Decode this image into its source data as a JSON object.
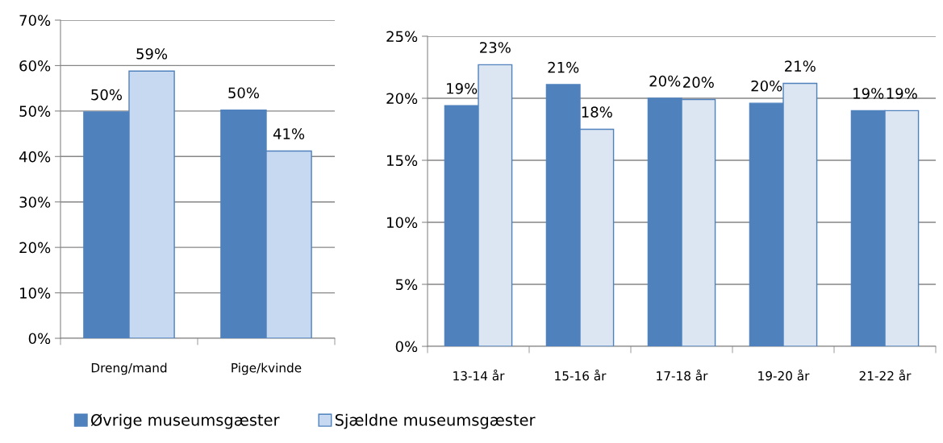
{
  "chart_data": [
    {
      "type": "bar",
      "categories": [
        "Dreng/mand",
        "Pige/kvinde"
      ],
      "series": [
        {
          "name": "Øvrige museumsgæster",
          "color": "#4f81bd",
          "values": [
            49.8,
            50.2
          ],
          "value_labels": [
            "50%",
            "50%"
          ]
        },
        {
          "name": "Sjældne museumsgæster",
          "color": "#c6d9f1",
          "values": [
            58.8,
            41.2
          ],
          "value_labels": [
            "59%",
            "41%"
          ]
        }
      ],
      "ylim": [
        0,
        70
      ],
      "yticks": [
        {
          "value": 0,
          "label": "0%"
        },
        {
          "value": 10,
          "label": "10%"
        },
        {
          "value": 20,
          "label": "20%"
        },
        {
          "value": 30,
          "label": "30%"
        },
        {
          "value": 40,
          "label": "40%"
        },
        {
          "value": 50,
          "label": "50%"
        },
        {
          "value": 60,
          "label": "60%"
        },
        {
          "value": 70,
          "label": "70%"
        }
      ],
      "grid": "y",
      "legend": "bottom"
    },
    {
      "type": "bar",
      "categories": [
        "13-14 år",
        "15-16 år",
        "17-18 år",
        "19-20 år",
        "21-22 år"
      ],
      "series": [
        {
          "color": "#4f81bd",
          "values": [
            19.4,
            21.1,
            20.0,
            19.6,
            19.0
          ],
          "value_labels": [
            "19%",
            "21%",
            "20%",
            "20%",
            "19%"
          ]
        },
        {
          "color": "#dce6f2",
          "values": [
            22.7,
            17.5,
            19.9,
            21.2,
            19.0
          ],
          "value_labels": [
            "23%",
            "18%",
            "20%",
            "21%",
            "19%"
          ]
        }
      ],
      "ylim": [
        0,
        25
      ],
      "yticks": [
        {
          "value": 0,
          "label": "0%"
        },
        {
          "value": 5,
          "label": "5%"
        },
        {
          "value": 10,
          "label": "10%"
        },
        {
          "value": 15,
          "label": "15%"
        },
        {
          "value": 20,
          "label": "20%"
        },
        {
          "value": 25,
          "label": "25%"
        }
      ],
      "grid": "y"
    }
  ]
}
